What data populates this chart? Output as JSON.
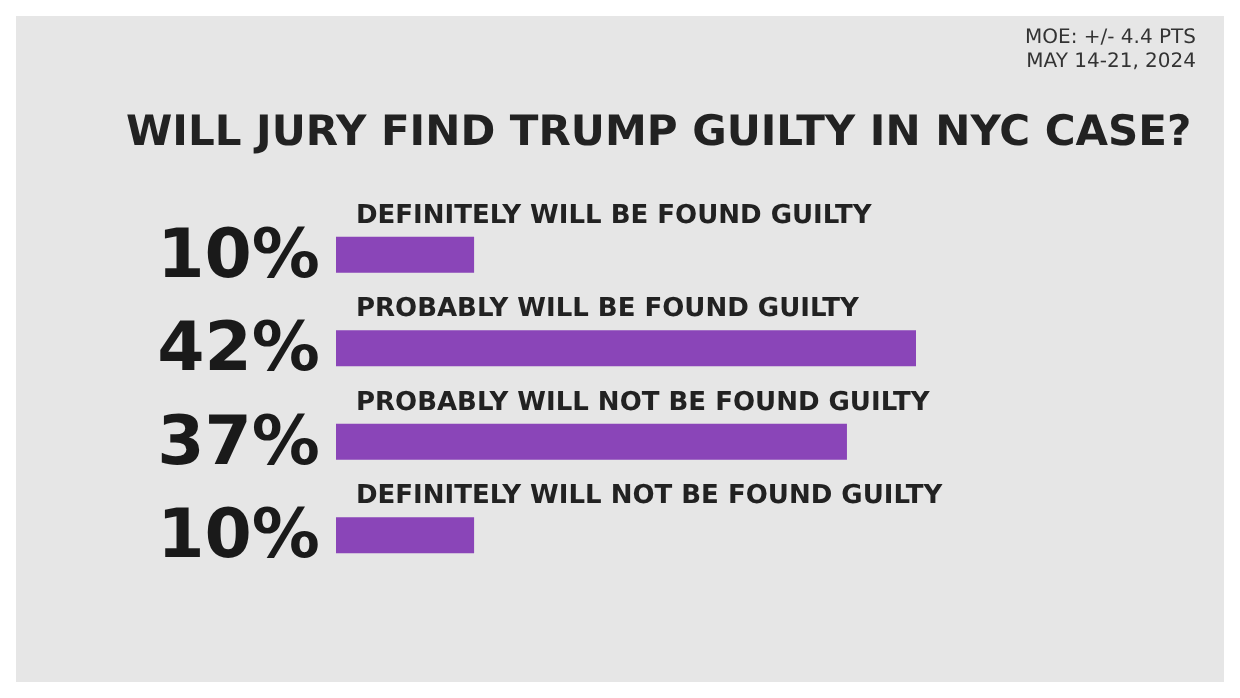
{
  "chart_data": {
    "type": "bar",
    "orientation": "horizontal",
    "title": "WILL JURY FIND TRUMP GUILTY IN NYC CASE?",
    "annotations": [
      "MOE: +/- 4.4 PTS",
      "MAY 14-21, 2024"
    ],
    "categories": [
      "DEFINITELY WILL BE FOUND GUILTY",
      "PROBABLY WILL BE FOUND GUILTY",
      "PROBABLY WILL NOT BE FOUND GUILTY",
      "DEFINITELY WILL NOT BE FOUND GUILTY"
    ],
    "values": [
      10,
      42,
      37,
      10
    ],
    "value_labels": [
      "10%",
      "42%",
      "37%",
      "10%"
    ],
    "color": "#8a45b8"
  }
}
